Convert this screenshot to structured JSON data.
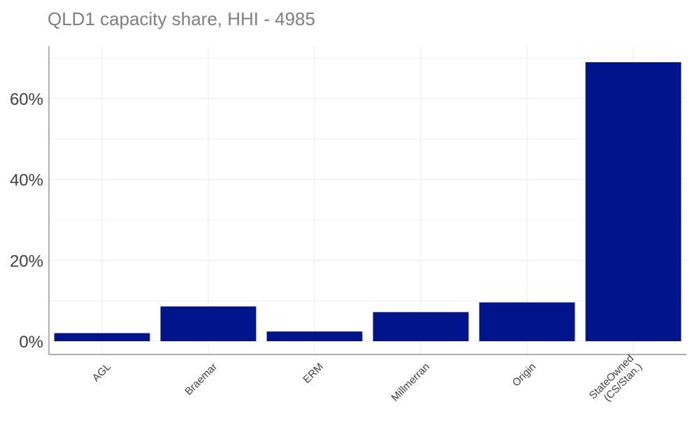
{
  "chart_data": {
    "type": "bar",
    "title": "QLD1 capacity share, HHI - 4985",
    "xlabel": "",
    "ylabel": "",
    "categories": [
      "AGL",
      "Braemar",
      "ERM",
      "Millmerran",
      "Origin",
      "StateOwned\n(CS/Stan.)"
    ],
    "values": [
      2.0,
      8.6,
      2.4,
      7.2,
      9.6,
      69.0
    ],
    "value_format": "percent",
    "ylim": [
      0,
      72
    ],
    "yticks": [
      0,
      20,
      40,
      60
    ],
    "ytick_labels": [
      "0%",
      "20%",
      "40%",
      "60%"
    ],
    "grid": true,
    "legend": "none",
    "bar_color": "#00148C",
    "grid_color": "#EBEBEB",
    "axis_color": "#7F7F7F"
  }
}
